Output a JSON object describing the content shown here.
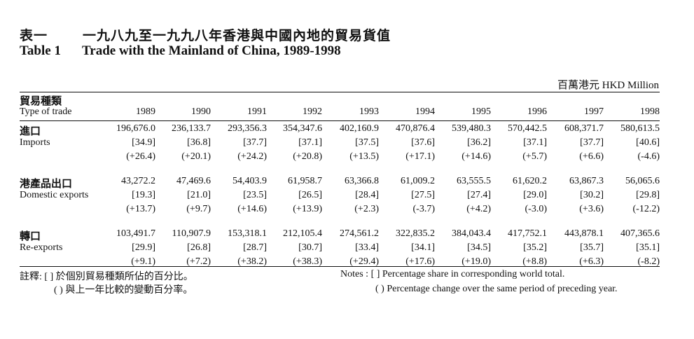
{
  "title_zh_number": "表一",
  "title_zh": "一九八九至一九九八年香港與中國內地的貿易貨值",
  "title_en_number": "Table 1",
  "title_en": "Trade with the Mainland of China, 1989-1998",
  "unit": "百萬港元 HKD Million",
  "header": {
    "type_zh": "貿易種類",
    "type_en": "Type of trade",
    "years": [
      "1989",
      "1990",
      "1991",
      "1992",
      "1993",
      "1994",
      "1995",
      "1996",
      "1997",
      "1998"
    ]
  },
  "sections": [
    {
      "label_zh": "進口",
      "label_en": "Imports",
      "values": [
        "196,676.0",
        "236,133.7",
        "293,356.3",
        "354,347.6",
        "402,160.9",
        "470,876.4",
        "539,480.3",
        "570,442.5",
        "608,371.7",
        "580,613.5"
      ],
      "shares": [
        "[34.9]",
        "[36.8]",
        "[37.7]",
        "[37.1]",
        "[37.5]",
        "[37.6]",
        "[36.2]",
        "[37.1]",
        "[37.7]",
        "[40.6]"
      ],
      "changes": [
        "(+26.4)",
        "(+20.1)",
        "(+24.2)",
        "(+20.8)",
        "(+13.5)",
        "(+17.1)",
        "(+14.6)",
        "(+5.7)",
        "(+6.6)",
        "(-4.6)"
      ]
    },
    {
      "label_zh": "港產品出口",
      "label_en": "Domestic exports",
      "values": [
        "43,272.2",
        "47,469.6",
        "54,403.9",
        "61,958.7",
        "63,366.8",
        "61,009.2",
        "63,555.5",
        "61,620.2",
        "63,867.3",
        "56,065.6"
      ],
      "shares": [
        "[19.3]",
        "[21.0]",
        "[23.5]",
        "[26.5]",
        "[28.4]",
        "[27.5]",
        "[27.4]",
        "[29.0]",
        "[30.2]",
        "[29.8]"
      ],
      "changes": [
        "(+13.7)",
        "(+9.7)",
        "(+14.6)",
        "(+13.9)",
        "(+2.3)",
        "(-3.7)",
        "(+4.2)",
        "(-3.0)",
        "(+3.6)",
        "(-12.2)"
      ]
    },
    {
      "label_zh": "轉口",
      "label_en": "Re-exports",
      "values": [
        "103,491.7",
        "110,907.9",
        "153,318.1",
        "212,105.4",
        "274,561.2",
        "322,835.2",
        "384,043.4",
        "417,752.1",
        "443,878.1",
        "407,365.6"
      ],
      "shares": [
        "[29.9]",
        "[26.8]",
        "[28.7]",
        "[30.7]",
        "[33.4]",
        "[34.1]",
        "[34.5]",
        "[35.2]",
        "[35.7]",
        "[35.1]"
      ],
      "changes": [
        "(+9.1)",
        "(+7.2)",
        "(+38.2)",
        "(+38.3)",
        "(+29.4)",
        "(+17.6)",
        "(+19.0)",
        "(+8.8)",
        "(+6.3)",
        "(-8.2)"
      ]
    }
  ],
  "notes_zh": {
    "prefix": "註釋:",
    "line1": "[ ]  於個別貿易種類所佔的百分比。",
    "line2": "( ) 與上一年比較的變動百分率。"
  },
  "notes_en": {
    "prefix": "Notes :",
    "line1": "[ ]  Percentage share in corresponding world total.",
    "line2": "( )  Percentage change over the same period of preceding year."
  }
}
